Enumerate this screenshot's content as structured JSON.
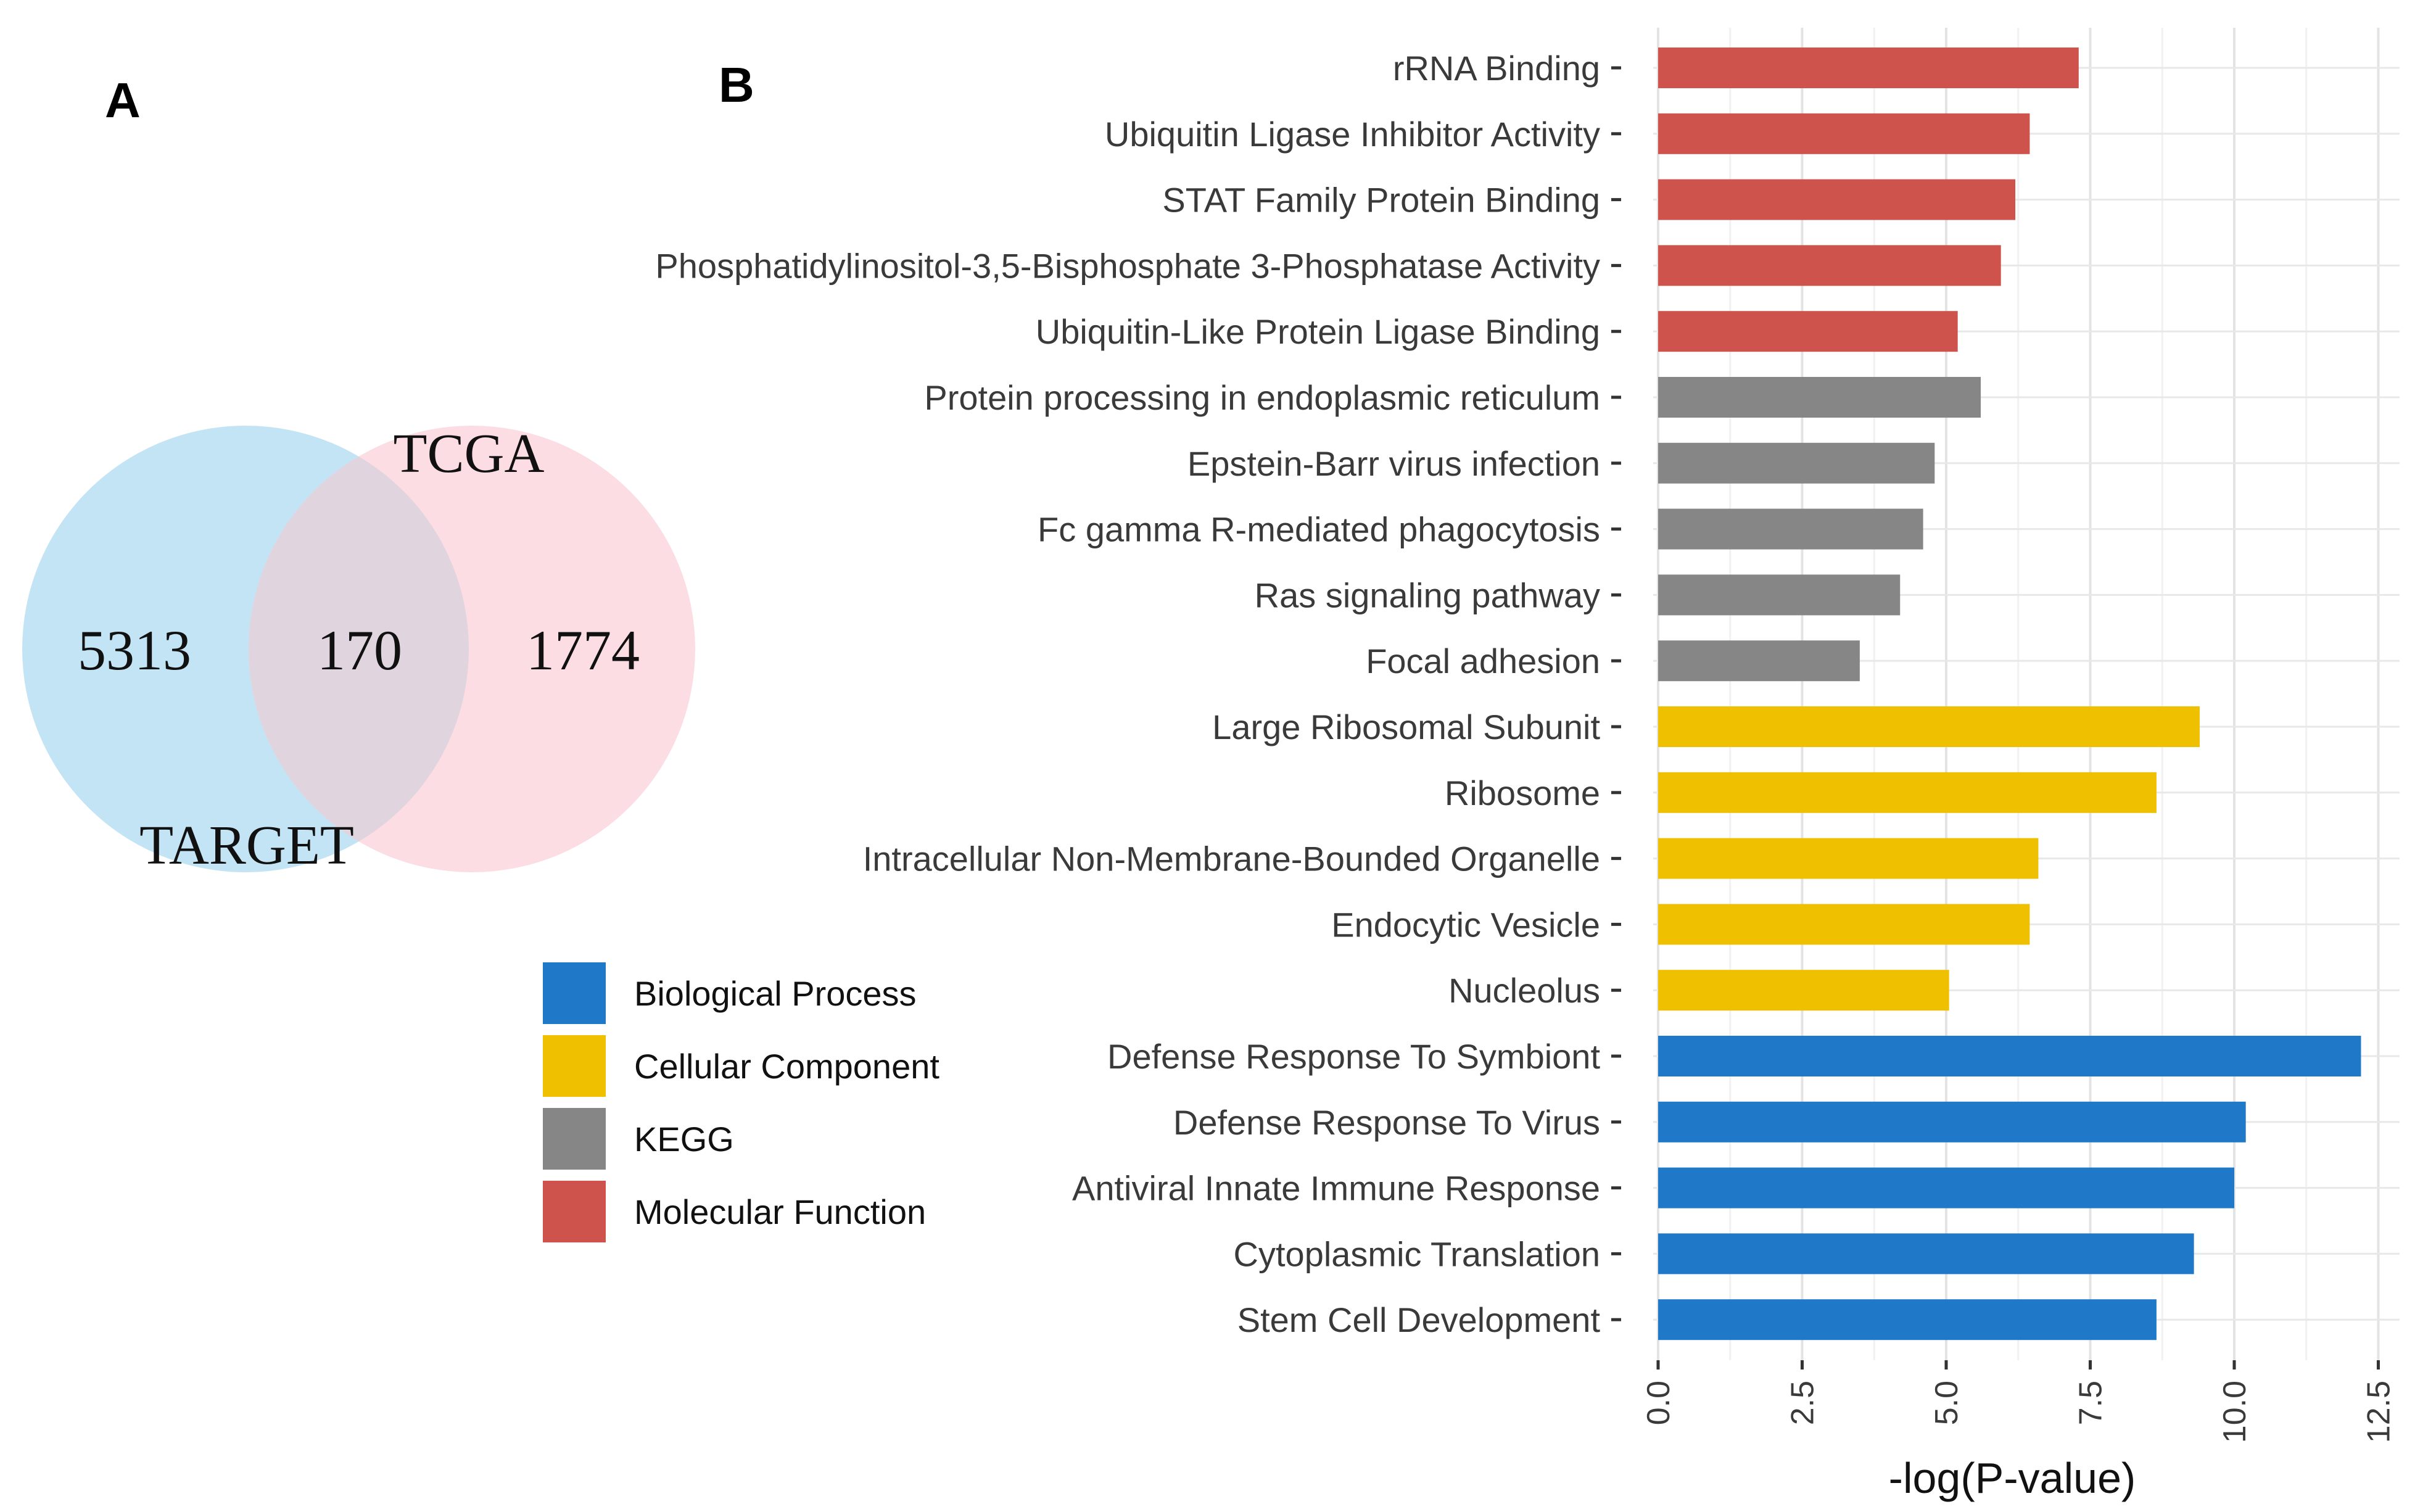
{
  "panel_a": {
    "letter": "A",
    "venn": {
      "sets": [
        {
          "name": "TARGET",
          "color": "#c3e4f4"
        },
        {
          "name": "TCGA",
          "color": "#fcdde3"
        }
      ],
      "overlap_color": "#e0d4de",
      "counts": {
        "target_only": "5313",
        "both": "170",
        "tcga_only": "1774"
      }
    }
  },
  "panel_b": {
    "letter": "B",
    "legend": [
      {
        "label": "Biological Process",
        "color": "#1f78c8"
      },
      {
        "label": "Cellular Component",
        "color": "#eec000"
      },
      {
        "label": "KEGG",
        "color": "#868686"
      },
      {
        "label": "Molecular Function",
        "color": "#cd534c"
      }
    ]
  },
  "chart_data": {
    "type": "bar",
    "orientation": "horizontal",
    "title": "",
    "xlabel": "-log(P-value)",
    "ylabel": "",
    "xlim": [
      0,
      12.5
    ],
    "xticks": [
      "0.0",
      "2.5",
      "5.0",
      "7.5",
      "10.0",
      "12.5"
    ],
    "grid": true,
    "legend_position": "left",
    "series_colors": {
      "Biological Process": "#1f78c8",
      "Cellular Component": "#eec000",
      "KEGG": "#868686",
      "Molecular Function": "#cd534c"
    },
    "bars": [
      {
        "label": "rRNA Binding",
        "value": 7.3,
        "group": "Molecular Function"
      },
      {
        "label": "Ubiquitin Ligase Inhibitor Activity",
        "value": 6.45,
        "group": "Molecular Function"
      },
      {
        "label": "STAT Family Protein Binding",
        "value": 6.2,
        "group": "Molecular Function"
      },
      {
        "label": "Phosphatidylinositol-3,5-Bisphosphate 3-Phosphatase Activity",
        "value": 5.95,
        "group": "Molecular Function"
      },
      {
        "label": "Ubiquitin-Like Protein Ligase Binding",
        "value": 5.2,
        "group": "Molecular Function"
      },
      {
        "label": "Protein processing in endoplasmic reticulum",
        "value": 5.6,
        "group": "KEGG"
      },
      {
        "label": "Epstein-Barr virus infection",
        "value": 4.8,
        "group": "KEGG"
      },
      {
        "label": "Fc gamma R-mediated phagocytosis",
        "value": 4.6,
        "group": "KEGG"
      },
      {
        "label": "Ras signaling pathway",
        "value": 4.2,
        "group": "KEGG"
      },
      {
        "label": "Focal adhesion",
        "value": 3.5,
        "group": "KEGG"
      },
      {
        "label": "Large Ribosomal Subunit",
        "value": 9.4,
        "group": "Cellular Component"
      },
      {
        "label": "Ribosome",
        "value": 8.65,
        "group": "Cellular Component"
      },
      {
        "label": "Intracellular Non-Membrane-Bounded Organelle",
        "value": 6.6,
        "group": "Cellular Component"
      },
      {
        "label": "Endocytic Vesicle",
        "value": 6.45,
        "group": "Cellular Component"
      },
      {
        "label": "Nucleolus",
        "value": 5.05,
        "group": "Cellular Component"
      },
      {
        "label": "Defense Response To Symbiont",
        "value": 12.2,
        "group": "Biological Process"
      },
      {
        "label": "Defense Response To Virus",
        "value": 10.2,
        "group": "Biological Process"
      },
      {
        "label": "Antiviral Innate Immune Response",
        "value": 10.0,
        "group": "Biological Process"
      },
      {
        "label": "Cytoplasmic Translation",
        "value": 9.3,
        "group": "Biological Process"
      },
      {
        "label": "Stem Cell Development",
        "value": 8.65,
        "group": "Biological Process"
      }
    ]
  }
}
